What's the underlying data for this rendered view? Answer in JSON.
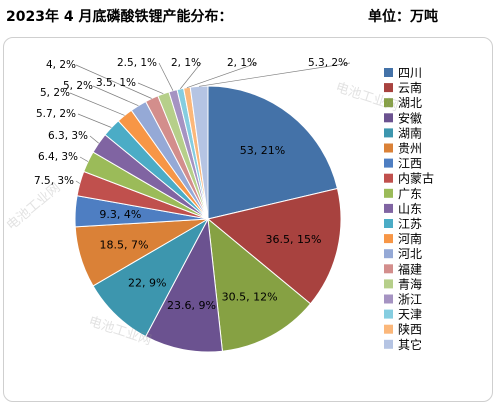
{
  "header": {
    "title": "2023年 4 月底磷酸铁锂产能分布：",
    "unit": "单位：万吨"
  },
  "watermark": "电池工业网",
  "chart_data": {
    "type": "pie",
    "title": "2023年 4 月底磷酸铁锂产能分布：",
    "unit": "单位：万吨",
    "legend_position": "right",
    "slices": [
      {
        "name": "四川",
        "value": 53,
        "percent": "21%",
        "label": "53, 21%",
        "color": "#4472A8"
      },
      {
        "name": "云南",
        "value": 36.5,
        "percent": "15%",
        "label": "36.5, 15%",
        "color": "#A8423F"
      },
      {
        "name": "湖北",
        "value": 30.5,
        "percent": "12%",
        "label": "30.5, 12%",
        "color": "#86A143"
      },
      {
        "name": "安徽",
        "value": 23.6,
        "percent": "9%",
        "label": "23.6, 9%",
        "color": "#6B5290"
      },
      {
        "name": "湖南",
        "value": 22,
        "percent": "9%",
        "label": "22, 9%",
        "color": "#3D96AE"
      },
      {
        "name": "贵州",
        "value": 18.5,
        "percent": "7%",
        "label": "18.5, 7%",
        "color": "#DA8137"
      },
      {
        "name": "江西",
        "value": 9.3,
        "percent": "4%",
        "label": "9.3, 4%",
        "color": "#4E7EC2"
      },
      {
        "name": "内蒙古",
        "value": 7.5,
        "percent": "3%",
        "label": "7.5, 3%",
        "color": "#C0504D"
      },
      {
        "name": "广东",
        "value": 6.4,
        "percent": "3%",
        "label": "6.4, 3%",
        "color": "#9BBB59"
      },
      {
        "name": "山东",
        "value": 6.3,
        "percent": "3%",
        "label": "6.3, 3%",
        "color": "#8064A2"
      },
      {
        "name": "江苏",
        "value": 5.7,
        "percent": "2%",
        "label": "5.7, 2%",
        "color": "#4BACC6"
      },
      {
        "name": "河南",
        "value": 5,
        "percent": "2%",
        "label": "5, 2%",
        "color": "#F79646"
      },
      {
        "name": "河北",
        "value": 5,
        "percent": "2%",
        "label": "5, 2%",
        "color": "#95A9D6"
      },
      {
        "name": "福建",
        "value": 4,
        "percent": "2%",
        "label": "4, 2%",
        "color": "#D38E8C"
      },
      {
        "name": "青海",
        "value": 3.5,
        "percent": "1%",
        "label": "3.5, 1%",
        "color": "#B6CF8A"
      },
      {
        "name": "浙江",
        "value": 2.5,
        "percent": "1%",
        "label": "2.5, 1%",
        "color": "#A593C2"
      },
      {
        "name": "天津",
        "value": 2,
        "percent": "1%",
        "label": "2, 1%",
        "color": "#85CDE0"
      },
      {
        "name": "陕西",
        "value": 2,
        "percent": "1%",
        "label": "2, 1%",
        "color": "#FBB77A"
      },
      {
        "name": "其它",
        "value": 5.3,
        "percent": "2%",
        "label": "5.3, 2%",
        "color": "#B5C4E3"
      }
    ]
  }
}
